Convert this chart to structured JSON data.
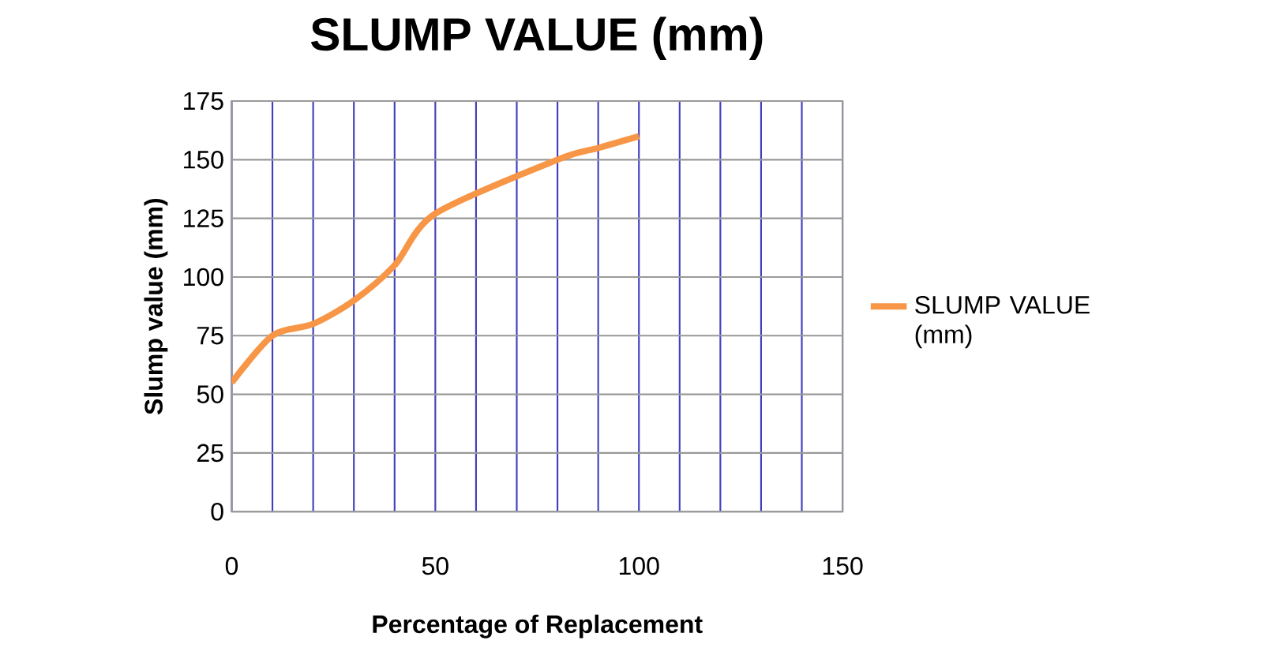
{
  "chart_data": {
    "type": "line",
    "title": "SLUMP VALUE (mm)",
    "xlabel": "Percentage of Replacement",
    "ylabel": "Slump value (mm)",
    "xlim": [
      0,
      150
    ],
    "xticks": [
      0,
      50,
      100,
      150
    ],
    "ylim": [
      0,
      175
    ],
    "yticks": [
      0,
      25,
      50,
      75,
      100,
      125,
      150,
      175
    ],
    "grid": true,
    "legend": "right",
    "series": [
      {
        "name": "SLUMP VALUE (mm)",
        "color": "#f79646",
        "x": [
          0,
          10,
          20,
          30,
          40,
          50,
          80,
          90,
          100
        ],
        "values": [
          55,
          75,
          80,
          90,
          105,
          127,
          150,
          155,
          160
        ]
      }
    ]
  }
}
